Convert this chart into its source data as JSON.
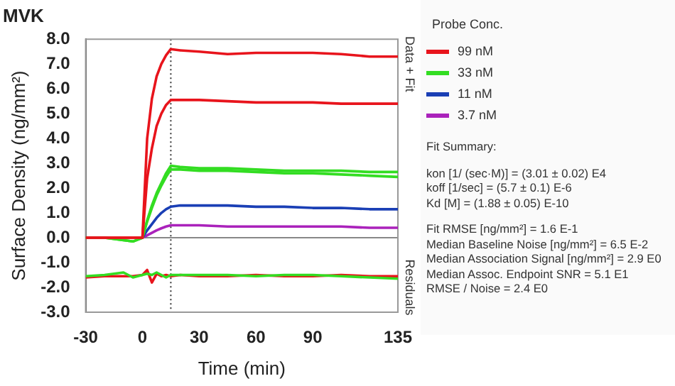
{
  "chart_data": {
    "type": "line",
    "title": "MVK",
    "xlabel": "Time (min)",
    "ylabel": "Surface Density (ng/mm²)",
    "legend_title": "Probe Conc.",
    "legend": "right",
    "marker": "none",
    "grid": false,
    "xlim": [
      -30,
      135
    ],
    "xticks": [
      -30,
      0,
      30,
      60,
      90,
      135
    ],
    "ylim": [
      -3,
      8
    ],
    "yticks": [
      {
        "value": -3,
        "label": "-3.0"
      },
      {
        "value": -2,
        "label": "-2.0"
      },
      {
        "value": -1,
        "label": "-1.0"
      },
      {
        "value": 0,
        "label": "0.0"
      },
      {
        "value": 1,
        "label": "1.0"
      },
      {
        "value": 2,
        "label": "2.0"
      },
      {
        "value": 3,
        "label": "3.0"
      },
      {
        "value": 4,
        "label": "4.0"
      },
      {
        "value": 5,
        "label": "5.0"
      },
      {
        "value": 6,
        "label": "6.0"
      },
      {
        "value": 7,
        "label": "7.0"
      },
      {
        "value": 8,
        "label": "8.0"
      }
    ],
    "ref_lines": [
      {
        "axis": "x",
        "value": 15,
        "color": "#333333",
        "line_style": "dotted"
      },
      {
        "axis": "y",
        "value": 0,
        "color": "#888888",
        "line_style": "solid"
      }
    ],
    "annotations": [
      "Data + Fit",
      "Residuals",
      "Fit Summary:",
      "kon [1/ (sec·M)] = (3.01 ± 0.02) E4",
      "koff [1/sec] = (5.7 ± 0.1) E-6",
      "Kd [M] = (1.88 ± 0.05) E-10",
      "Fit RMSE [ng/mm²] = 1.6 E-1",
      "Median Baseline Noise [ng/mm²] = 6.5 E-2",
      "Median Association Signal [ng/mm²] = 2.9 E0",
      "Median Assoc. Endpoint SNR = 5.1 E1",
      "RMSE / Noise = 2.4 E0"
    ],
    "x": [
      -30,
      -20,
      -10,
      -5,
      0,
      2.5,
      5,
      7.5,
      10,
      12.5,
      15,
      20,
      30,
      45,
      60,
      75,
      90,
      105,
      120,
      135
    ],
    "series": [
      {
        "name": "99 nM",
        "color": "#e8141c",
        "values": [
          0,
          0,
          0,
          0,
          0,
          4.0,
          5.6,
          6.5,
          7.0,
          7.35,
          7.6,
          7.55,
          7.5,
          7.4,
          7.45,
          7.45,
          7.45,
          7.4,
          7.3,
          7.3
        ]
      },
      {
        "color": "#e8141c",
        "values": [
          0,
          0,
          0,
          0,
          0,
          2.4,
          3.6,
          4.5,
          5.0,
          5.35,
          5.55,
          5.55,
          5.55,
          5.5,
          5.45,
          5.45,
          5.45,
          5.4,
          5.4,
          5.4
        ]
      },
      {
        "name": "33 nM",
        "color": "#33dd22",
        "values": [
          0,
          0,
          -0.1,
          -0.15,
          0,
          0.7,
          1.3,
          1.8,
          2.2,
          2.6,
          2.9,
          2.85,
          2.8,
          2.8,
          2.75,
          2.7,
          2.7,
          2.7,
          2.65,
          2.65
        ]
      },
      {
        "color": "#33dd22",
        "values": [
          0,
          0,
          -0.1,
          -0.15,
          0,
          0.65,
          1.2,
          1.7,
          2.1,
          2.45,
          2.75,
          2.75,
          2.7,
          2.7,
          2.65,
          2.6,
          2.6,
          2.55,
          2.5,
          2.45
        ]
      },
      {
        "name": "11 nM",
        "color": "#1a3fb5",
        "values": [
          null,
          null,
          null,
          null,
          0,
          0.3,
          0.55,
          0.8,
          1.0,
          1.15,
          1.25,
          1.3,
          1.3,
          1.3,
          1.25,
          1.25,
          1.2,
          1.2,
          1.15,
          1.15
        ]
      },
      {
        "name": "3.7 nM",
        "color": "#aa22bb",
        "values": [
          null,
          null,
          null,
          null,
          0,
          0.1,
          0.2,
          0.3,
          0.38,
          0.45,
          0.5,
          0.5,
          0.5,
          0.45,
          0.45,
          0.45,
          0.45,
          0.45,
          0.4,
          0.4
        ]
      },
      {
        "color": "#33dd22",
        "values": [
          -1.55,
          -1.5,
          -1.4,
          -1.6,
          -1.5,
          -1.45,
          -1.5,
          -1.4,
          -1.5,
          -1.6,
          -1.5,
          -1.5,
          -1.5,
          -1.5,
          -1.55,
          -1.5,
          -1.5,
          -1.55,
          -1.6,
          -1.65
        ]
      },
      {
        "color": "#e8141c",
        "values": [
          -1.6,
          -1.55,
          -1.55,
          -1.55,
          -1.5,
          -1.3,
          -1.8,
          -1.45,
          -1.55,
          -1.5,
          -1.55,
          -1.5,
          -1.55,
          -1.55,
          -1.5,
          -1.55,
          -1.55,
          -1.5,
          -1.55,
          -1.55
        ]
      }
    ]
  }
}
